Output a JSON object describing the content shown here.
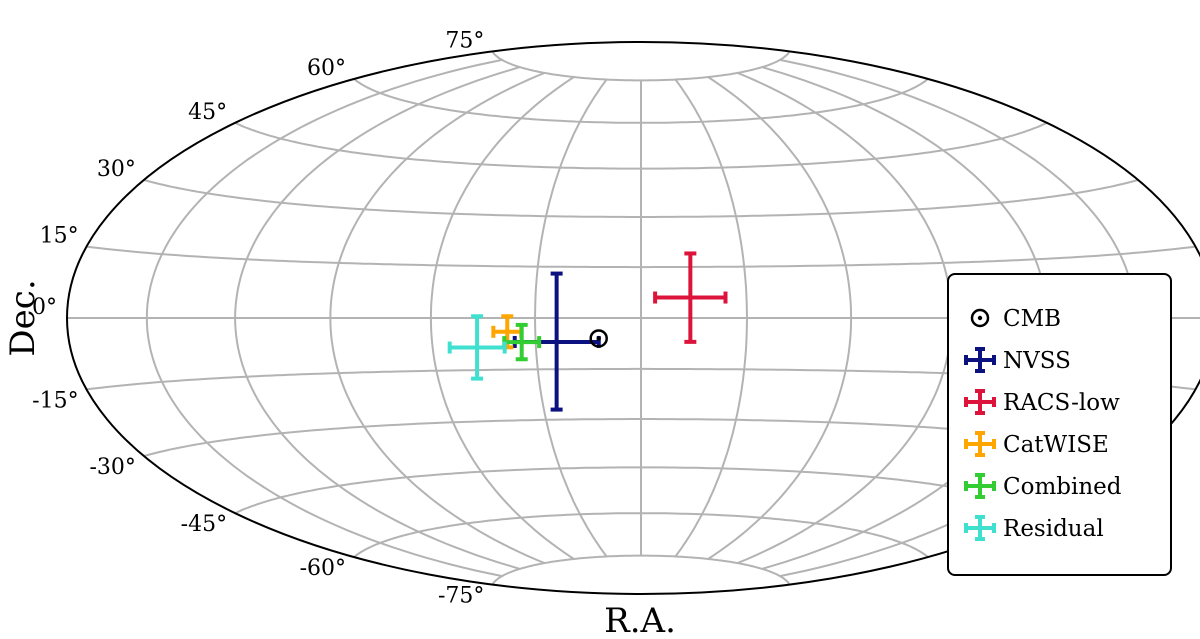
{
  "chart_data": {
    "type": "scatter",
    "projection": "hammer",
    "xlabel": "R.A.",
    "ylabel": "Dec.",
    "dec_ticks": [
      {
        "value": 75,
        "label": "75°"
      },
      {
        "value": 60,
        "label": "60°"
      },
      {
        "value": 45,
        "label": "45°"
      },
      {
        "value": 30,
        "label": "30°"
      },
      {
        "value": 15,
        "label": "15°"
      },
      {
        "value": 0,
        "label": "0°"
      },
      {
        "value": -15,
        "label": "-15°"
      },
      {
        "value": -30,
        "label": "-30°"
      },
      {
        "value": -45,
        "label": "-45°"
      },
      {
        "value": -60,
        "label": "-60°"
      },
      {
        "value": -75,
        "label": "-75°"
      }
    ],
    "ra_gridlines": [
      -150,
      -120,
      -90,
      -60,
      -30,
      0,
      30,
      60,
      90,
      120,
      150
    ],
    "grid": true,
    "legend_position": "lower-right",
    "cmb": {
      "name": "CMB",
      "ra": -12,
      "dec": -6
    },
    "series": [
      {
        "name": "NVSS",
        "color": "#0b1280",
        "ra": -24,
        "dec": -7,
        "ra_err": 12,
        "dec_err": 20
      },
      {
        "name": "RACS-low",
        "color": "#dc143c",
        "ra": 14,
        "dec": 6,
        "ra_err": 10,
        "dec_err": 13
      },
      {
        "name": "CatWISE",
        "color": "#ffa500",
        "ra": -38,
        "dec": -4,
        "ra_err": 4,
        "dec_err": 4.5
      },
      {
        "name": "Combined",
        "color": "#32cd32",
        "ra": -34,
        "dec": -7,
        "ra_err": 5,
        "dec_err": 5
      },
      {
        "name": "Residual",
        "color": "#40e0d0",
        "ra": -47,
        "dec": -8.5,
        "ra_err": 8,
        "dec_err": 9
      }
    ]
  }
}
